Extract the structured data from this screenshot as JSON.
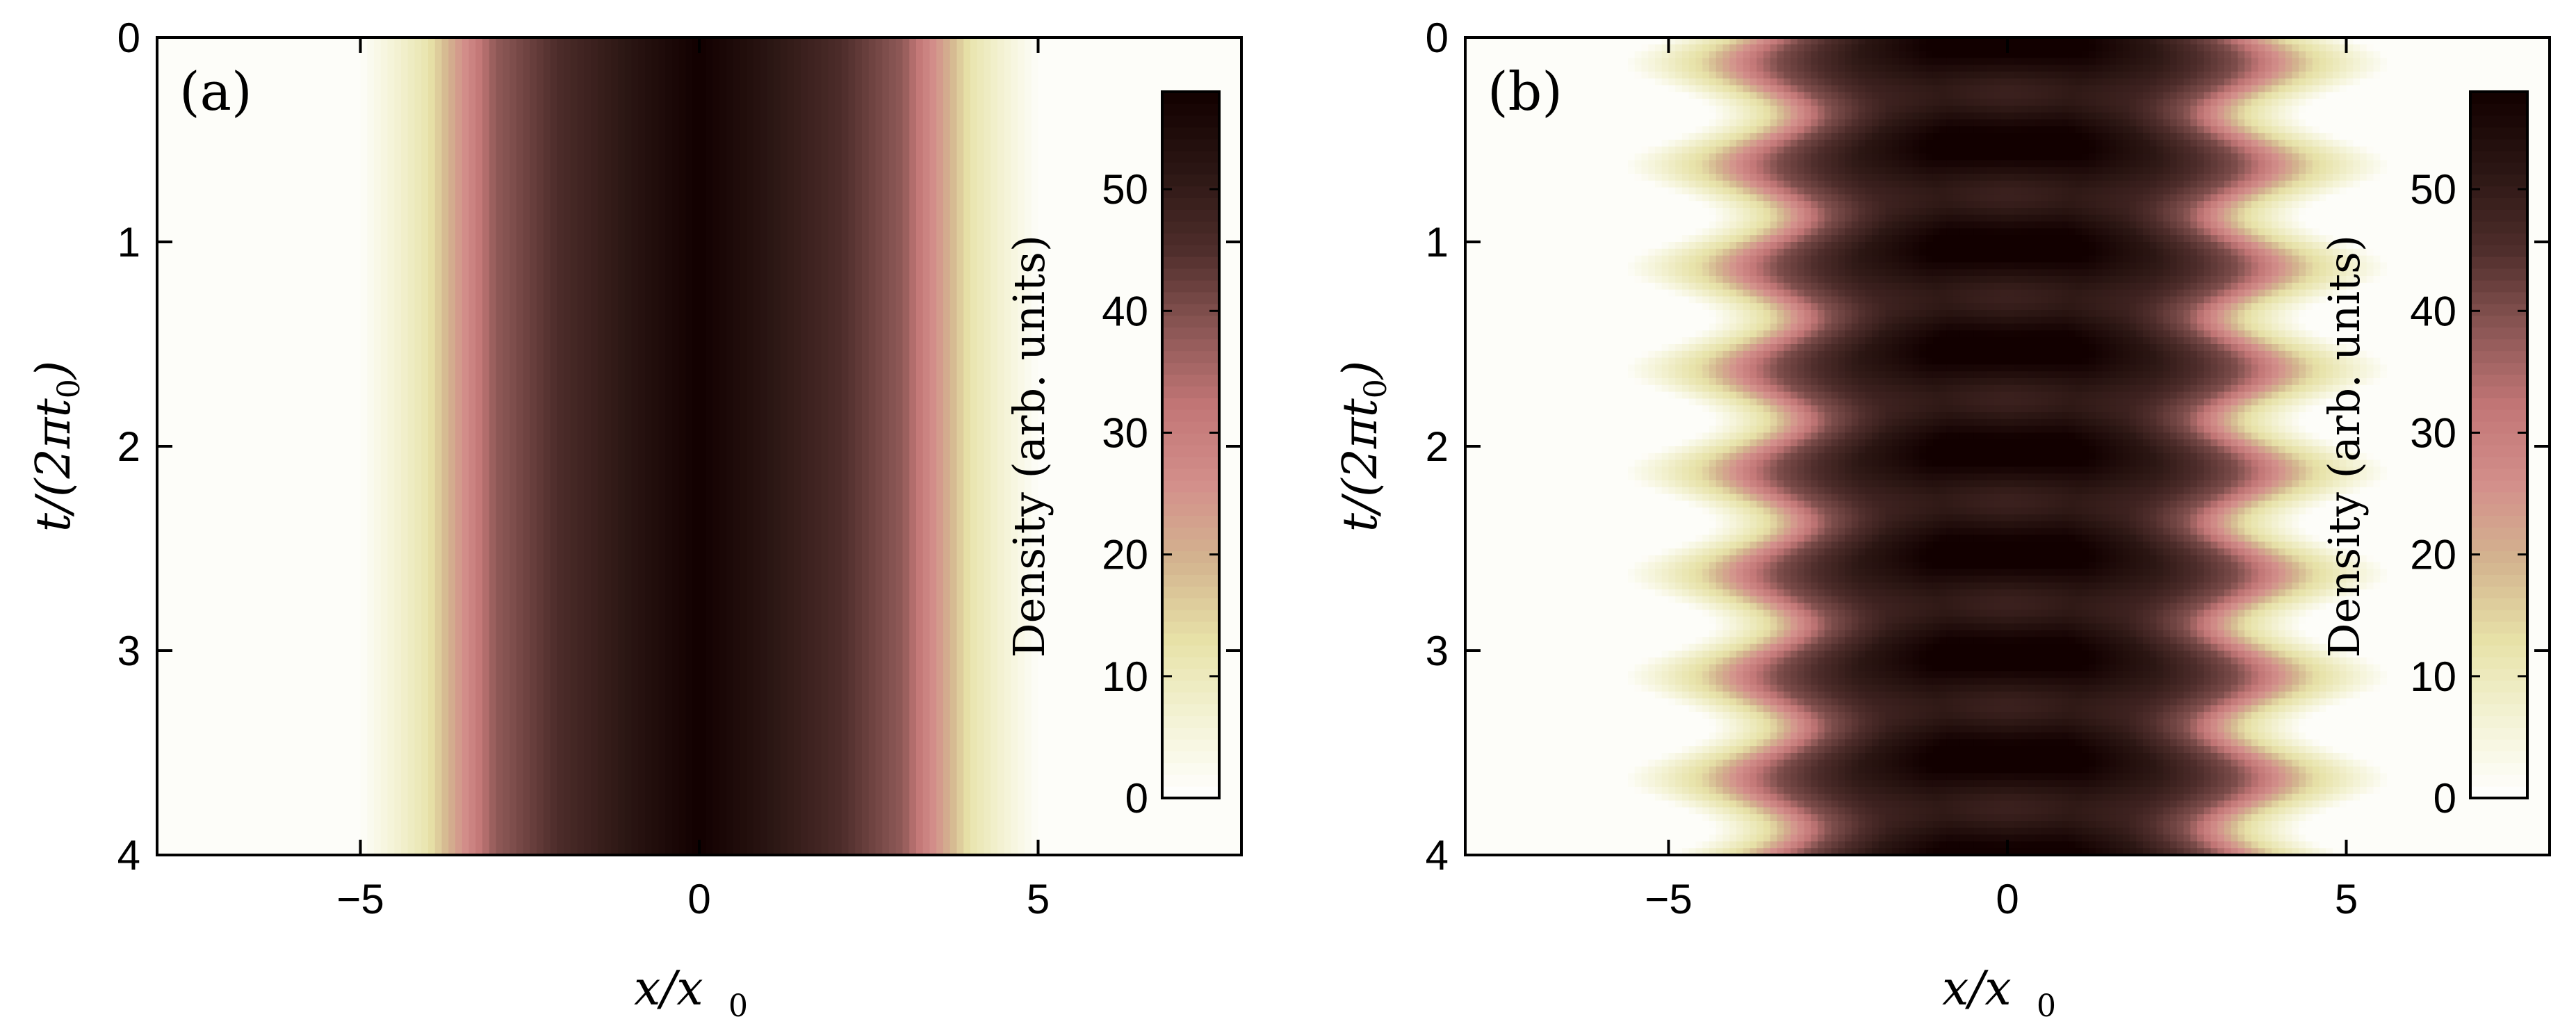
{
  "chart_data": [
    {
      "type": "heatmap",
      "panel_label": "(a)",
      "xlabel": "x/x0",
      "ylabel": "t/(2πt0)",
      "xlim": [
        -8,
        8
      ],
      "ylim": [
        0,
        4
      ],
      "y_inverted": true,
      "xticks": [
        "−5",
        "0",
        "5"
      ],
      "xtick_values": [
        -5,
        0,
        5
      ],
      "yticks": [
        "0",
        "1",
        "2",
        "3",
        "4"
      ],
      "ytick_values": [
        0,
        1,
        2,
        3,
        4
      ],
      "density_profile": {
        "x": [
          -5,
          -4,
          -3,
          -2,
          -1,
          0,
          1,
          2,
          3,
          4,
          5
        ],
        "density": [
          1,
          12,
          38,
          46,
          52,
          58,
          52,
          46,
          38,
          12,
          1
        ]
      },
      "time_dependence": "none",
      "colorbar": {
        "label": "Density (arb. units)",
        "range": [
          0,
          58
        ],
        "ticks": [
          "0",
          "10",
          "20",
          "30",
          "40",
          "50"
        ],
        "tick_values": [
          0,
          10,
          20,
          30,
          40,
          50
        ]
      }
    },
    {
      "type": "heatmap",
      "panel_label": "(b)",
      "xlabel": "x/x0",
      "ylabel": "t/(2πt0)",
      "xlim": [
        -8,
        8
      ],
      "ylim": [
        0,
        4
      ],
      "y_inverted": true,
      "xticks": [
        "−5",
        "0",
        "5"
      ],
      "xtick_values": [
        -5,
        0,
        5
      ],
      "yticks": [
        "0",
        "1",
        "2",
        "3",
        "4"
      ],
      "ytick_values": [
        0,
        1,
        2,
        3,
        4
      ],
      "density_profile": {
        "x": [
          -5,
          -4,
          -3,
          -2,
          -1,
          0,
          1,
          2,
          3,
          4,
          5
        ],
        "density": [
          1,
          14,
          40,
          50,
          55,
          54,
          55,
          50,
          40,
          14,
          1
        ]
      },
      "time_dependence": "breathing oscillation",
      "colorbar": {
        "label": "Density (arb. units)",
        "range": [
          0,
          58
        ],
        "ticks": [
          "0",
          "10",
          "20",
          "30",
          "40",
          "50"
        ],
        "tick_values": [
          0,
          10,
          20,
          30,
          40,
          50
        ]
      }
    }
  ],
  "colormap": [
    "#ffffff",
    "#f4f3d6",
    "#e7e2a8",
    "#d3b58f",
    "#d38f8b",
    "#c27676",
    "#8a5654",
    "#4e2d2b",
    "#2b1613",
    "#120000"
  ]
}
